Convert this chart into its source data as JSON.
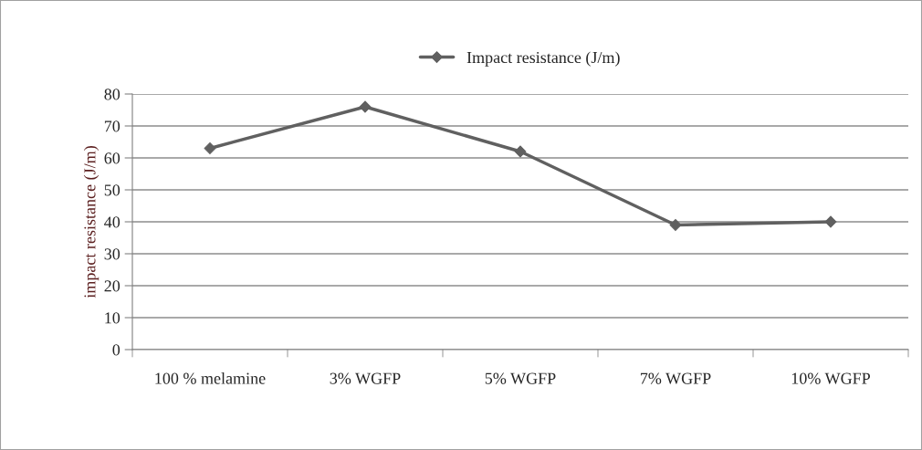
{
  "chart_data": {
    "type": "line",
    "categories": [
      "100 % melamine",
      "3% WGFP",
      "5% WGFP",
      "7% WGFP",
      "10% WGFP"
    ],
    "series": [
      {
        "name": "Impact resistance (J/m)",
        "color": "#606060",
        "values": [
          63,
          76,
          62,
          39,
          40
        ]
      }
    ],
    "ylabel": "impact resistance (J/m)",
    "ylim": [
      0,
      80
    ],
    "yticks": [
      0,
      10,
      20,
      30,
      40,
      50,
      60,
      70,
      80
    ],
    "grid": "y",
    "legend": "top",
    "marker": "diamond",
    "line_style": "solid"
  }
}
